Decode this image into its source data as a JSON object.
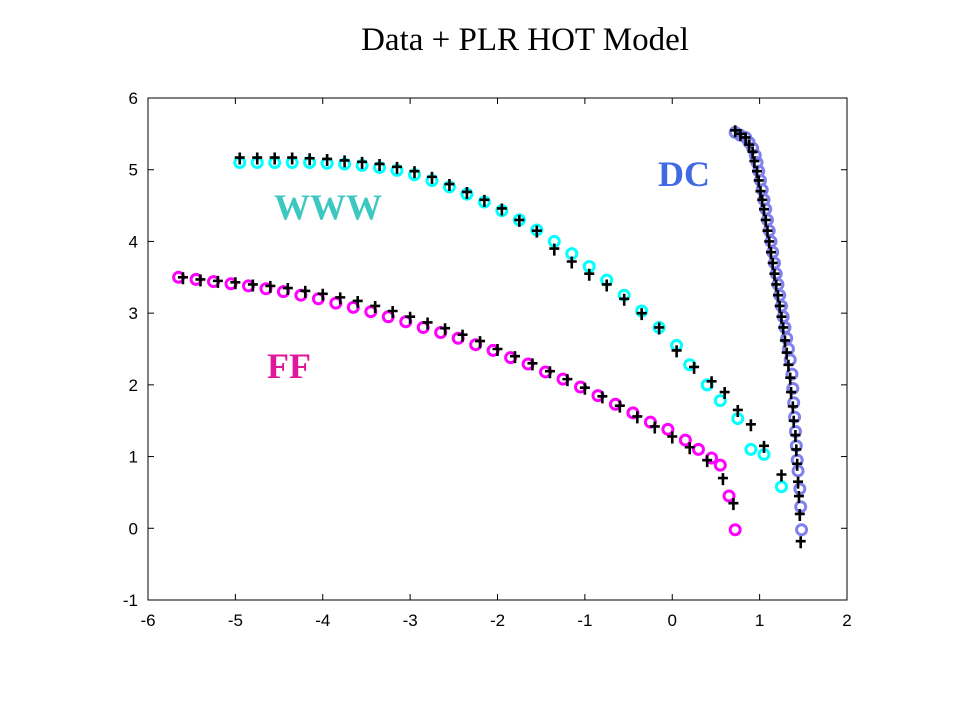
{
  "chart_data": {
    "type": "scatter",
    "title": "Data + PLR HOT Model",
    "xlabel": "",
    "ylabel": "",
    "xlim": [
      -6,
      2
    ],
    "ylim": [
      -1,
      6
    ],
    "x_ticks": [
      "-6",
      "-5",
      "-4",
      "-3",
      "-2",
      "-1",
      "0",
      "1",
      "2"
    ],
    "y_ticks": [
      "-1",
      "0",
      "1",
      "2",
      "3",
      "4",
      "5",
      "6"
    ],
    "grid": false,
    "data_marker_color": "#000000",
    "series": [
      {
        "name": "FF",
        "color": "#ff00ff",
        "label_color": "#e0179b",
        "model": [
          [
            -5.65,
            3.5
          ],
          [
            -5.45,
            3.47
          ],
          [
            -5.25,
            3.44
          ],
          [
            -5.05,
            3.41
          ],
          [
            -4.85,
            3.38
          ],
          [
            -4.65,
            3.34
          ],
          [
            -4.45,
            3.3
          ],
          [
            -4.25,
            3.25
          ],
          [
            -4.05,
            3.2
          ],
          [
            -3.85,
            3.14
          ],
          [
            -3.65,
            3.08
          ],
          [
            -3.45,
            3.02
          ],
          [
            -3.25,
            2.95
          ],
          [
            -3.05,
            2.88
          ],
          [
            -2.85,
            2.8
          ],
          [
            -2.65,
            2.73
          ],
          [
            -2.45,
            2.65
          ],
          [
            -2.25,
            2.56
          ],
          [
            -2.05,
            2.48
          ],
          [
            -1.85,
            2.38
          ],
          [
            -1.65,
            2.29
          ],
          [
            -1.45,
            2.18
          ],
          [
            -1.25,
            2.08
          ],
          [
            -1.05,
            1.97
          ],
          [
            -0.85,
            1.85
          ],
          [
            -0.65,
            1.73
          ],
          [
            -0.45,
            1.61
          ],
          [
            -0.25,
            1.48
          ],
          [
            -0.05,
            1.38
          ],
          [
            0.15,
            1.23
          ],
          [
            0.3,
            1.1
          ],
          [
            0.45,
            0.98
          ],
          [
            0.55,
            0.88
          ],
          [
            0.65,
            0.45
          ],
          [
            0.72,
            -0.02
          ]
        ],
        "data": [
          [
            -5.6,
            3.5
          ],
          [
            -5.4,
            3.47
          ],
          [
            -5.2,
            3.45
          ],
          [
            -5.0,
            3.43
          ],
          [
            -4.8,
            3.4
          ],
          [
            -4.6,
            3.38
          ],
          [
            -4.4,
            3.35
          ],
          [
            -4.2,
            3.31
          ],
          [
            -4.0,
            3.27
          ],
          [
            -3.8,
            3.22
          ],
          [
            -3.6,
            3.17
          ],
          [
            -3.4,
            3.1
          ],
          [
            -3.2,
            3.03
          ],
          [
            -3.0,
            2.95
          ],
          [
            -2.8,
            2.87
          ],
          [
            -2.6,
            2.79
          ],
          [
            -2.4,
            2.7
          ],
          [
            -2.2,
            2.61
          ],
          [
            -2.0,
            2.5
          ],
          [
            -1.8,
            2.4
          ],
          [
            -1.6,
            2.3
          ],
          [
            -1.4,
            2.19
          ],
          [
            -1.2,
            2.08
          ],
          [
            -1.0,
            1.96
          ],
          [
            -0.8,
            1.84
          ],
          [
            -0.6,
            1.71
          ],
          [
            -0.4,
            1.56
          ],
          [
            -0.2,
            1.42
          ],
          [
            0.0,
            1.28
          ],
          [
            0.2,
            1.13
          ],
          [
            0.4,
            0.95
          ],
          [
            0.58,
            0.7
          ],
          [
            0.7,
            0.35
          ]
        ]
      },
      {
        "name": "WWW",
        "color": "#00ffff",
        "label_color": "#3cc8c0",
        "model": [
          [
            -4.95,
            5.1
          ],
          [
            -4.75,
            5.1
          ],
          [
            -4.55,
            5.1
          ],
          [
            -4.35,
            5.1
          ],
          [
            -4.15,
            5.1
          ],
          [
            -3.95,
            5.09
          ],
          [
            -3.75,
            5.08
          ],
          [
            -3.55,
            5.06
          ],
          [
            -3.35,
            5.03
          ],
          [
            -3.15,
            4.99
          ],
          [
            -2.95,
            4.93
          ],
          [
            -2.75,
            4.85
          ],
          [
            -2.55,
            4.76
          ],
          [
            -2.35,
            4.66
          ],
          [
            -2.15,
            4.55
          ],
          [
            -1.95,
            4.43
          ],
          [
            -1.75,
            4.3
          ],
          [
            -1.55,
            4.16
          ],
          [
            -1.35,
            4.0
          ],
          [
            -1.15,
            3.83
          ],
          [
            -0.95,
            3.65
          ],
          [
            -0.75,
            3.46
          ],
          [
            -0.55,
            3.25
          ],
          [
            -0.35,
            3.03
          ],
          [
            -0.15,
            2.8
          ],
          [
            0.05,
            2.55
          ],
          [
            0.2,
            2.28
          ],
          [
            0.4,
            2.0
          ],
          [
            0.55,
            1.78
          ],
          [
            0.75,
            1.53
          ],
          [
            0.9,
            1.1
          ],
          [
            1.05,
            1.03
          ],
          [
            1.25,
            0.58
          ]
        ],
        "data": [
          [
            -4.95,
            5.17
          ],
          [
            -4.75,
            5.17
          ],
          [
            -4.55,
            5.17
          ],
          [
            -4.35,
            5.17
          ],
          [
            -4.15,
            5.16
          ],
          [
            -3.95,
            5.15
          ],
          [
            -3.75,
            5.13
          ],
          [
            -3.55,
            5.11
          ],
          [
            -3.35,
            5.08
          ],
          [
            -3.15,
            5.04
          ],
          [
            -2.95,
            4.98
          ],
          [
            -2.75,
            4.9
          ],
          [
            -2.55,
            4.8
          ],
          [
            -2.35,
            4.69
          ],
          [
            -2.15,
            4.58
          ],
          [
            -1.95,
            4.46
          ],
          [
            -1.75,
            4.3
          ],
          [
            -1.55,
            4.15
          ],
          [
            -1.35,
            3.9
          ],
          [
            -1.15,
            3.72
          ],
          [
            -0.95,
            3.55
          ],
          [
            -0.75,
            3.4
          ],
          [
            -0.55,
            3.2
          ],
          [
            -0.35,
            3.0
          ],
          [
            -0.15,
            2.8
          ],
          [
            0.05,
            2.48
          ],
          [
            0.25,
            2.25
          ],
          [
            0.45,
            2.05
          ],
          [
            0.6,
            1.9
          ],
          [
            0.75,
            1.65
          ],
          [
            0.9,
            1.45
          ],
          [
            1.05,
            1.15
          ],
          [
            1.25,
            0.75
          ]
        ]
      },
      {
        "name": "DC",
        "color": "#8080ee",
        "label_color": "#4169e1",
        "model": [
          [
            0.72,
            5.52
          ],
          [
            0.78,
            5.48
          ],
          [
            0.84,
            5.45
          ],
          [
            0.88,
            5.38
          ],
          [
            0.92,
            5.3
          ],
          [
            0.95,
            5.2
          ],
          [
            0.97,
            5.1
          ],
          [
            0.99,
            4.98
          ],
          [
            1.01,
            4.85
          ],
          [
            1.03,
            4.72
          ],
          [
            1.05,
            4.58
          ],
          [
            1.07,
            4.45
          ],
          [
            1.09,
            4.3
          ],
          [
            1.11,
            4.15
          ],
          [
            1.13,
            4.0
          ],
          [
            1.15,
            3.85
          ],
          [
            1.17,
            3.7
          ],
          [
            1.19,
            3.55
          ],
          [
            1.21,
            3.4
          ],
          [
            1.23,
            3.25
          ],
          [
            1.25,
            3.1
          ],
          [
            1.27,
            2.95
          ],
          [
            1.29,
            2.8
          ],
          [
            1.31,
            2.65
          ],
          [
            1.33,
            2.5
          ],
          [
            1.35,
            2.35
          ],
          [
            1.37,
            2.15
          ],
          [
            1.38,
            1.95
          ],
          [
            1.39,
            1.75
          ],
          [
            1.4,
            1.55
          ],
          [
            1.41,
            1.35
          ],
          [
            1.42,
            1.15
          ],
          [
            1.43,
            0.95
          ],
          [
            1.44,
            0.8
          ],
          [
            1.46,
            0.55
          ],
          [
            1.47,
            0.3
          ],
          [
            1.48,
            -0.02
          ]
        ],
        "data": [
          [
            0.72,
            5.55
          ],
          [
            0.78,
            5.5
          ],
          [
            0.84,
            5.45
          ],
          [
            0.88,
            5.35
          ],
          [
            0.92,
            5.25
          ],
          [
            0.94,
            5.12
          ],
          [
            0.97,
            4.98
          ],
          [
            0.99,
            4.85
          ],
          [
            1.01,
            4.7
          ],
          [
            1.03,
            4.58
          ],
          [
            1.05,
            4.45
          ],
          [
            1.07,
            4.3
          ],
          [
            1.09,
            4.15
          ],
          [
            1.11,
            4.0
          ],
          [
            1.13,
            3.85
          ],
          [
            1.15,
            3.7
          ],
          [
            1.17,
            3.55
          ],
          [
            1.19,
            3.4
          ],
          [
            1.21,
            3.25
          ],
          [
            1.23,
            3.1
          ],
          [
            1.25,
            2.95
          ],
          [
            1.27,
            2.8
          ],
          [
            1.29,
            2.62
          ],
          [
            1.31,
            2.45
          ],
          [
            1.33,
            2.28
          ],
          [
            1.35,
            2.1
          ],
          [
            1.36,
            1.9
          ],
          [
            1.38,
            1.7
          ],
          [
            1.39,
            1.5
          ],
          [
            1.41,
            1.3
          ],
          [
            1.42,
            1.1
          ],
          [
            1.43,
            0.9
          ],
          [
            1.44,
            0.65
          ],
          [
            1.45,
            0.45
          ],
          [
            1.46,
            0.2
          ],
          [
            1.47,
            -0.18
          ]
        ]
      }
    ]
  }
}
